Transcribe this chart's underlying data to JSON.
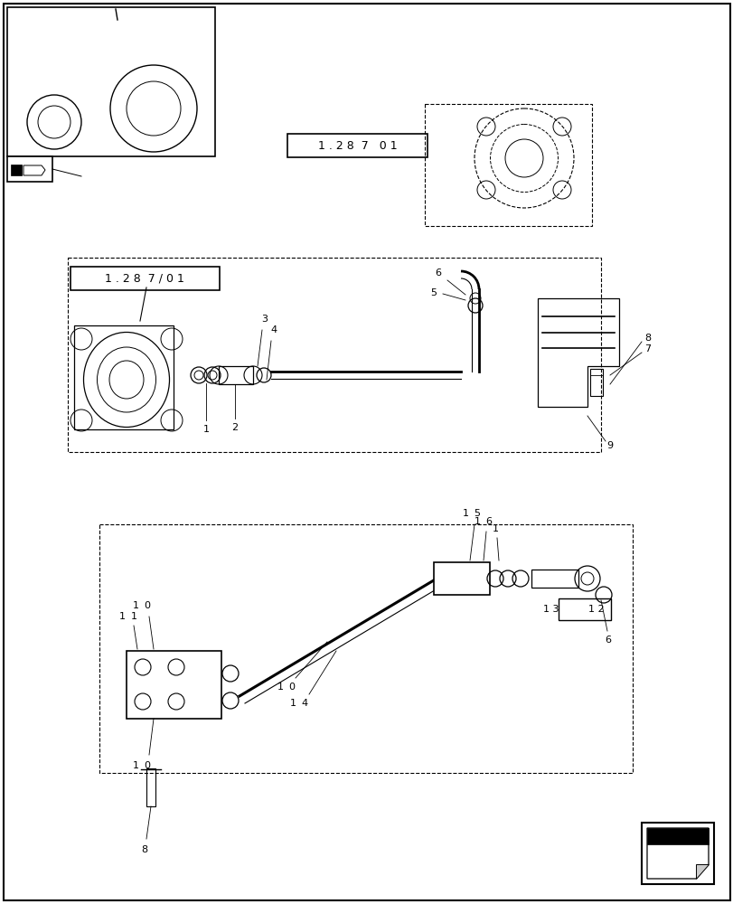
{
  "bg_color": "#ffffff",
  "line_color": "#000000",
  "fig_width": 8.12,
  "fig_height": 10.0,
  "dpi": 100
}
